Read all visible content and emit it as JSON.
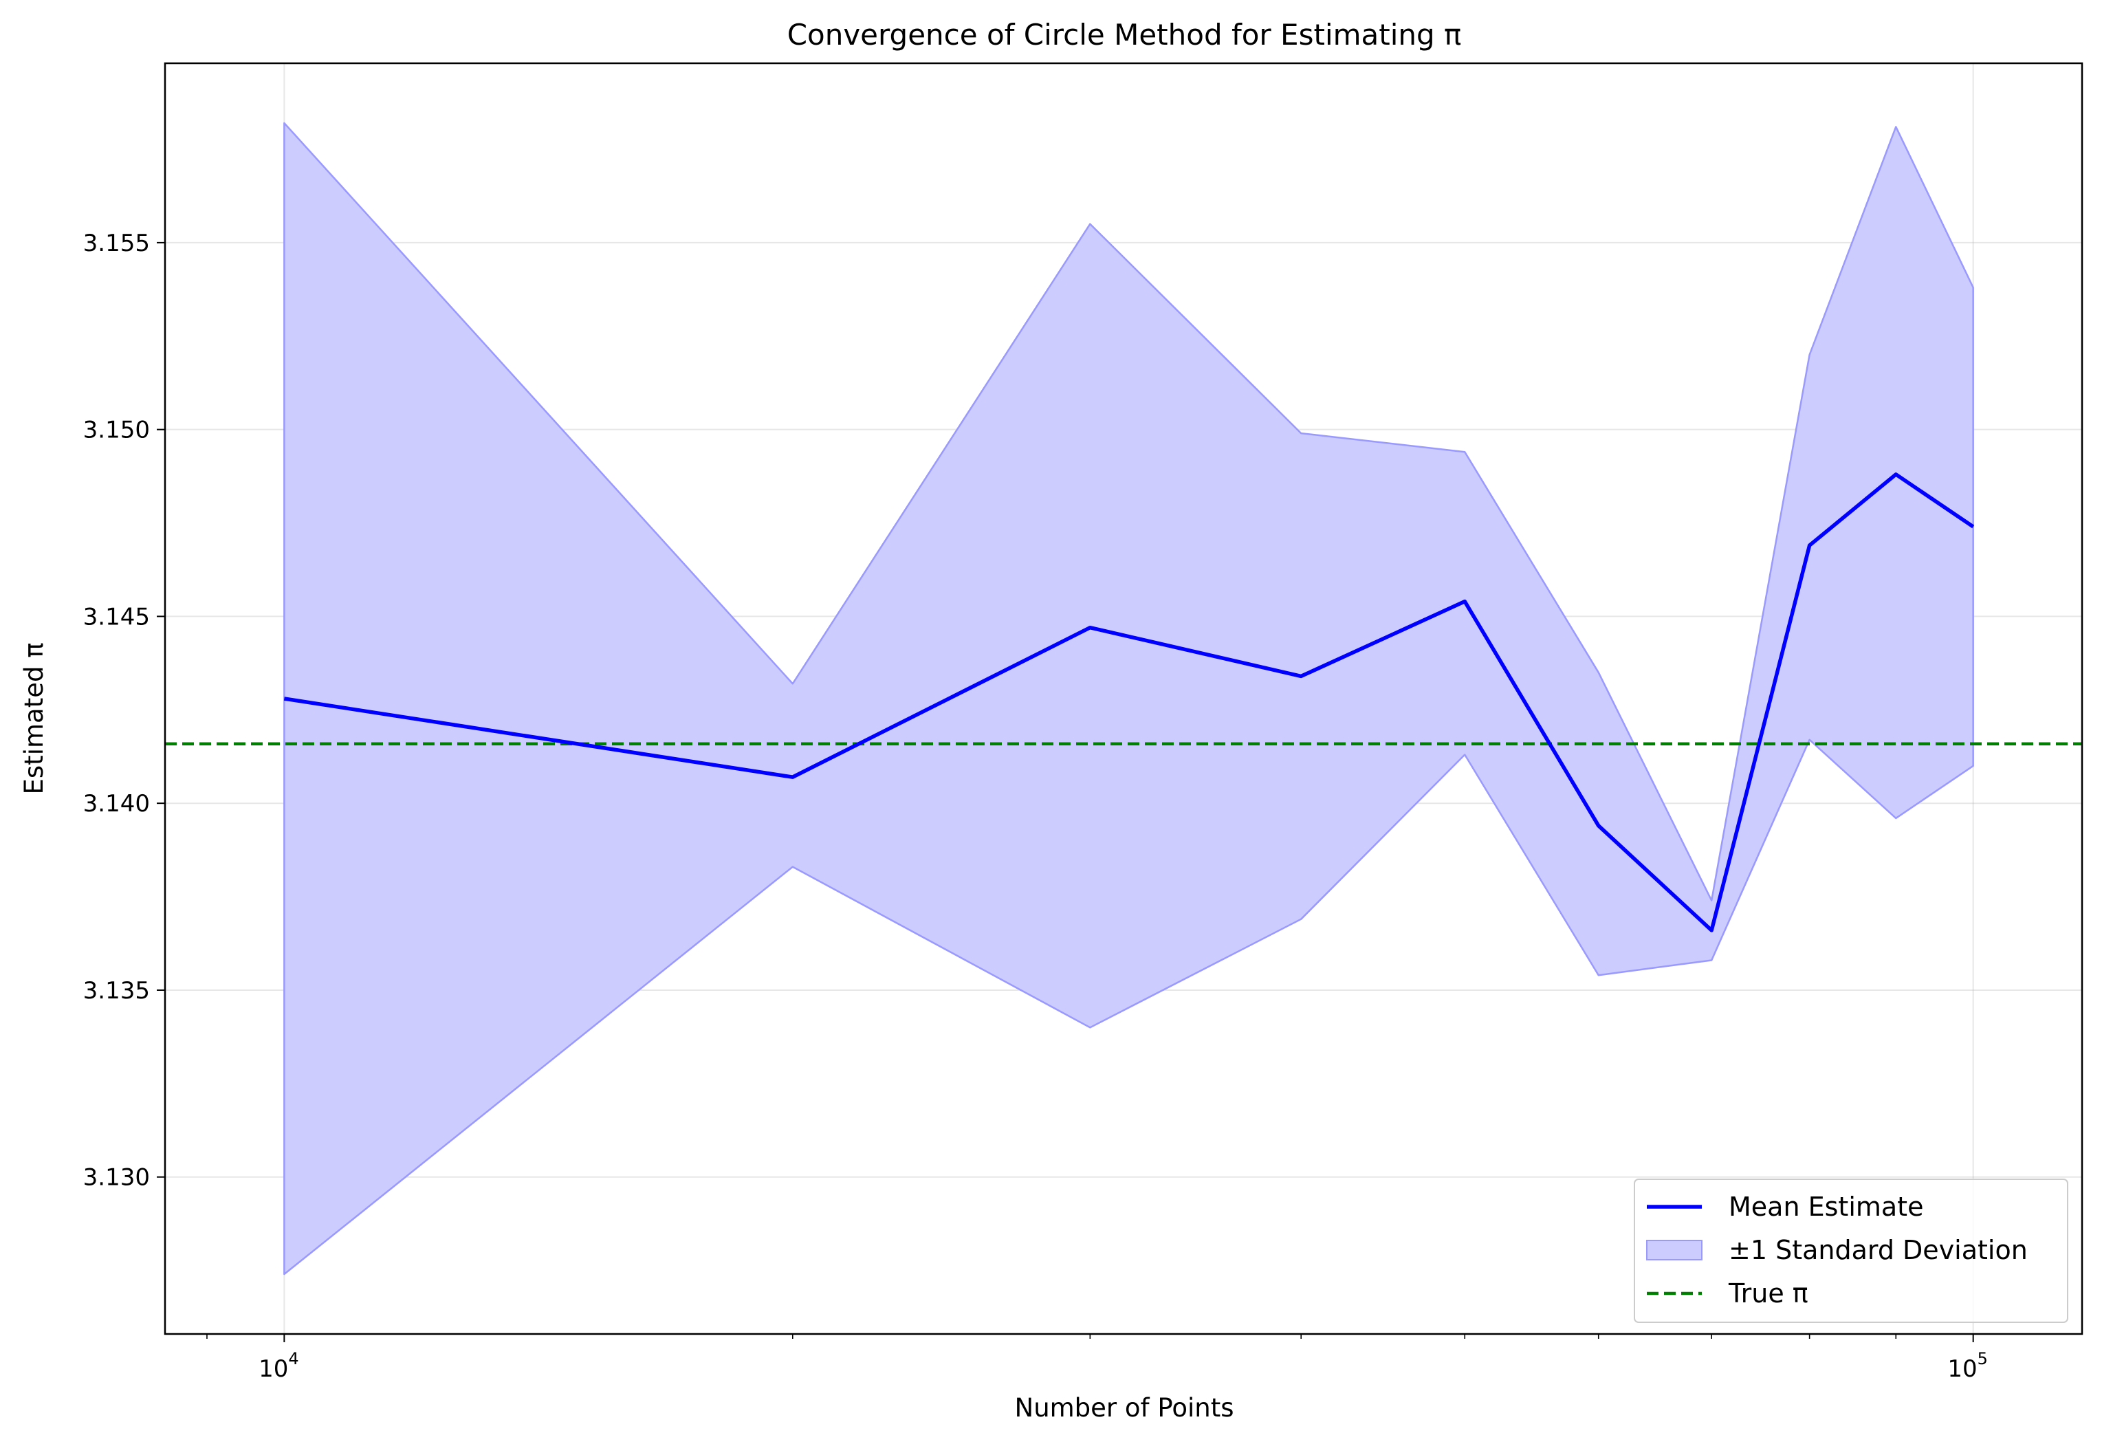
{
  "chart_data": {
    "type": "line",
    "title": "Convergence of Circle Method for Estimating π",
    "xlabel": "Number of Points",
    "ylabel": "Estimated π",
    "x_scale": "log",
    "xlim": [
      8500,
      116000
    ],
    "ylim": [
      3.1258,
      3.1598
    ],
    "x_ticks": [
      {
        "value": 10000,
        "base": "10",
        "exp": "4"
      },
      {
        "value": 100000,
        "base": "10",
        "exp": "5"
      }
    ],
    "y_ticks": [
      {
        "value": 3.13,
        "label": "3.130"
      },
      {
        "value": 3.135,
        "label": "3.135"
      },
      {
        "value": 3.14,
        "label": "3.140"
      },
      {
        "value": 3.145,
        "label": "3.145"
      },
      {
        "value": 3.15,
        "label": "3.150"
      },
      {
        "value": 3.155,
        "label": "3.155"
      }
    ],
    "grid": true,
    "legend_position": "lower right",
    "x": [
      10000,
      20000,
      30000,
      40000,
      50000,
      60000,
      70000,
      80000,
      90000,
      100000
    ],
    "series": [
      {
        "name": "Mean Estimate",
        "kind": "line",
        "color": "#0000ff",
        "values": [
          3.1428,
          3.1407,
          3.1447,
          3.1434,
          3.1454,
          3.1394,
          3.1366,
          3.1469,
          3.1488,
          3.1474
        ]
      },
      {
        "name": "±1 Standard Deviation",
        "kind": "band",
        "color": "#0000ff",
        "fill_color": "#ccccff",
        "upper": [
          3.1582,
          3.1432,
          3.1555,
          3.1499,
          3.1494,
          3.1435,
          3.1374,
          3.152,
          3.1581,
          3.1538
        ],
        "lower": [
          3.1274,
          3.1383,
          3.134,
          3.1369,
          3.1413,
          3.1354,
          3.1358,
          3.1417,
          3.1396,
          3.141
        ]
      },
      {
        "name": "True π",
        "kind": "hline",
        "color": "#008000",
        "value": 3.14159
      }
    ]
  }
}
